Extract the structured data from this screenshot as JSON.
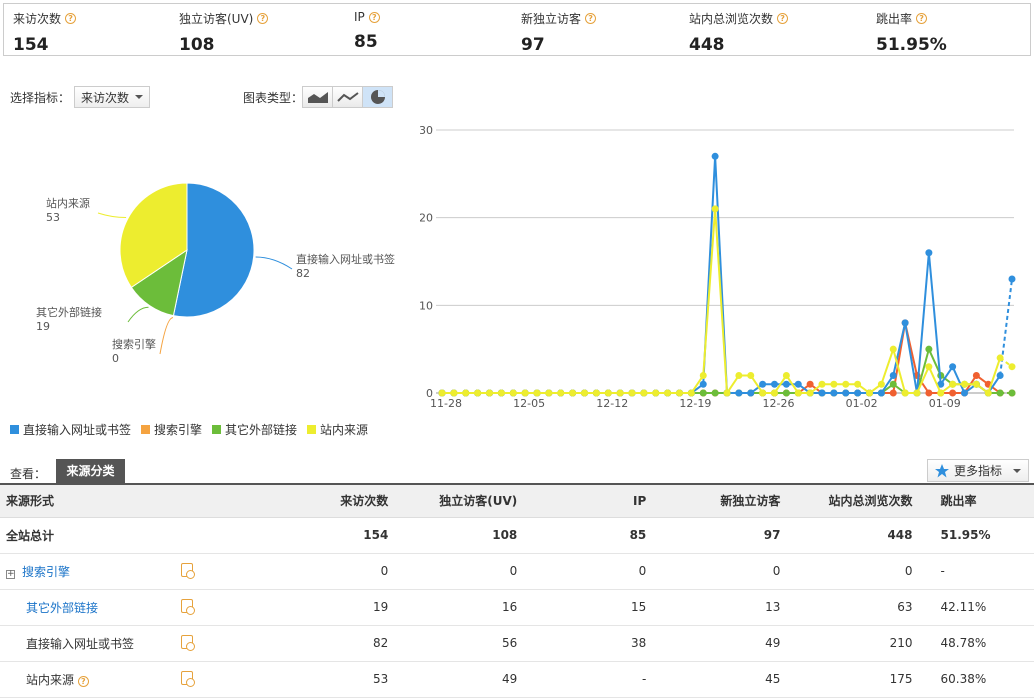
{
  "kpis": [
    {
      "label": "来访次数",
      "value": "154"
    },
    {
      "label": "独立访客(UV)",
      "value": "108"
    },
    {
      "label": "IP",
      "value": "85"
    },
    {
      "label": "新独立访客",
      "value": "97"
    },
    {
      "label": "站内总浏览次数",
      "value": "448"
    },
    {
      "label": "跳出率",
      "value": "51.95%"
    }
  ],
  "selector": {
    "label": "选择指标：",
    "value": "来访次数"
  },
  "chart_type": {
    "label": "图表类型："
  },
  "colors": {
    "direct": "#2f8fdd",
    "search": "#f5a340",
    "external": "#6cbd3a",
    "internal": "#eded2f",
    "red": "#f06030"
  },
  "pie": {
    "slices": [
      {
        "name": "直接输入网址或书签",
        "value": "82"
      },
      {
        "name": "搜索引擎",
        "value": "0"
      },
      {
        "name": "其它外部链接",
        "value": "19"
      },
      {
        "name": "站内来源",
        "value": "53"
      }
    ]
  },
  "chart_data": [
    {
      "type": "pie",
      "categories": [
        "直接输入网址或书签",
        "搜索引擎",
        "其它外部链接",
        "站内来源"
      ],
      "values": [
        82,
        0,
        19,
        53
      ]
    },
    {
      "type": "line",
      "x_ticks": [
        "11-28",
        "12-05",
        "12-12",
        "12-19",
        "12-26",
        "01-02",
        "01-09"
      ],
      "ylim": [
        0,
        30
      ],
      "y_ticks": [
        "0",
        "10",
        "20",
        "30"
      ],
      "grid": true,
      "x_count": 49,
      "series": [
        {
          "name": "直接输入网址或书签",
          "color": "#2f8fdd",
          "values": [
            0,
            0,
            0,
            0,
            0,
            0,
            0,
            0,
            0,
            0,
            0,
            0,
            0,
            0,
            0,
            0,
            0,
            0,
            0,
            0,
            0,
            0,
            1,
            27,
            0,
            0,
            0,
            1,
            1,
            1,
            1,
            0,
            0,
            0,
            0,
            0,
            0,
            0,
            2,
            8,
            0,
            16,
            1,
            3,
            0,
            1,
            0,
            2,
            13
          ]
        },
        {
          "name": "搜索引擎",
          "color": "#f06030",
          "values": [
            0,
            0,
            0,
            0,
            0,
            0,
            0,
            0,
            0,
            0,
            0,
            0,
            0,
            0,
            0,
            0,
            0,
            0,
            0,
            0,
            0,
            0,
            0,
            0,
            0,
            0,
            0,
            0,
            0,
            0,
            0,
            1,
            0,
            0,
            0,
            0,
            0,
            0,
            0,
            8,
            2,
            0,
            0,
            0,
            0,
            2,
            1,
            0,
            0
          ]
        },
        {
          "name": "其它外部链接",
          "color": "#6cbd3a",
          "values": [
            0,
            0,
            0,
            0,
            0,
            0,
            0,
            0,
            0,
            0,
            0,
            0,
            0,
            0,
            0,
            0,
            0,
            0,
            0,
            0,
            0,
            0,
            0,
            0,
            0,
            0,
            0,
            0,
            0,
            0,
            0,
            0,
            0,
            0,
            0,
            0,
            0,
            0,
            1,
            0,
            0,
            5,
            2,
            1,
            1,
            1,
            0,
            0,
            0
          ]
        },
        {
          "name": "站内来源",
          "color": "#eded2f",
          "values": [
            0,
            0,
            0,
            0,
            0,
            0,
            0,
            0,
            0,
            0,
            0,
            0,
            0,
            0,
            0,
            0,
            0,
            0,
            0,
            0,
            0,
            0,
            2,
            21,
            0,
            2,
            2,
            0,
            0,
            2,
            0,
            0,
            1,
            1,
            1,
            1,
            0,
            1,
            5,
            0,
            0,
            3,
            0,
            1,
            1,
            1,
            0,
            4,
            3
          ]
        }
      ]
    }
  ],
  "tabs": {
    "label": "查看：",
    "active": "来源分类",
    "more": "更多指标"
  },
  "table": {
    "headers": [
      "来源形式",
      "来访次数",
      "独立访客(UV)",
      "IP",
      "新独立访客",
      "站内总浏览次数",
      "跳出率"
    ],
    "total": {
      "name": "全站总计",
      "cells": [
        "154",
        "108",
        "85",
        "97",
        "448",
        "51.95%"
      ]
    },
    "rows": [
      {
        "name": "搜索引擎",
        "cells": [
          "0",
          "0",
          "0",
          "0",
          "0",
          "-"
        ]
      },
      {
        "name": "其它外部链接",
        "cells": [
          "19",
          "16",
          "15",
          "13",
          "63",
          "42.11%"
        ]
      },
      {
        "name": "直接输入网址或书签",
        "cells": [
          "82",
          "56",
          "38",
          "49",
          "210",
          "48.78%"
        ]
      },
      {
        "name": "站内来源",
        "cells": [
          "53",
          "49",
          "-",
          "45",
          "175",
          "60.38%"
        ]
      }
    ]
  }
}
